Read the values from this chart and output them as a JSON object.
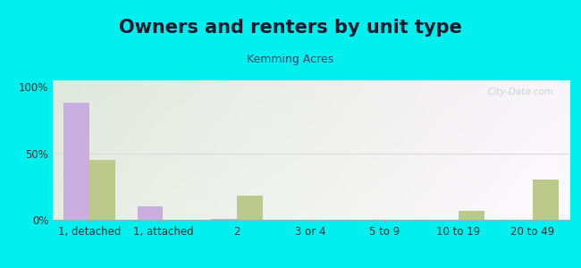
{
  "title": "Owners and renters by unit type",
  "subtitle": "Kemming Acres",
  "categories": [
    "1, detached",
    "1, attached",
    "2",
    "3 or 4",
    "5 to 9",
    "10 to 19",
    "20 to 49"
  ],
  "owner_values": [
    88,
    10,
    1,
    0,
    0,
    0,
    0
  ],
  "renter_values": [
    45,
    0,
    18,
    0,
    0,
    7,
    30
  ],
  "owner_color": "#c9aee0",
  "renter_color": "#bdc98a",
  "background_color": "#00efef",
  "ylabel_ticks": [
    "0%",
    "50%",
    "100%"
  ],
  "ytick_values": [
    0,
    50,
    100
  ],
  "ylim": [
    0,
    105
  ],
  "bar_width": 0.35,
  "title_fontsize": 15,
  "subtitle_fontsize": 9,
  "tick_fontsize": 8.5,
  "legend_fontsize": 9,
  "watermark_text": "City-Data.com",
  "watermark_color": "#c0cfd0",
  "grid_color": "#dddddd",
  "title_color": "#1a1a2e",
  "subtitle_color": "#444466"
}
